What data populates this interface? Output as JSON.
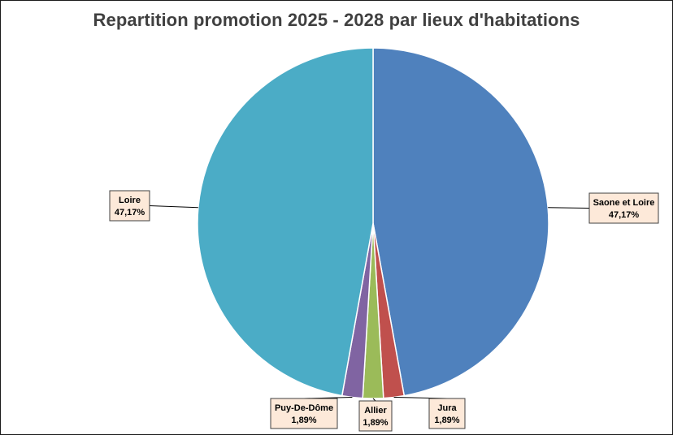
{
  "chart_data": {
    "type": "pie",
    "title": "Repartition promotion 2025 - 2028 par lieux d'habitations",
    "slices": [
      {
        "name": "Saone et Loire",
        "value": 47.17,
        "label": "47,17%",
        "color": "#4f81bd"
      },
      {
        "name": "Jura",
        "value": 1.89,
        "label": "1,89%",
        "color": "#c0504d"
      },
      {
        "name": "Allier",
        "value": 1.89,
        "label": "1,89%",
        "color": "#9bbb59"
      },
      {
        "name": "Puy-De-Dôme",
        "value": 1.89,
        "label": "1,89%",
        "color": "#8064a2"
      },
      {
        "name": "Loire",
        "value": 47.17,
        "label": "47,17%",
        "color": "#4bacc6"
      }
    ],
    "start_angle_deg": 0,
    "direction": "clockwise",
    "legend": "none",
    "label_fill": "#fde9d9"
  }
}
